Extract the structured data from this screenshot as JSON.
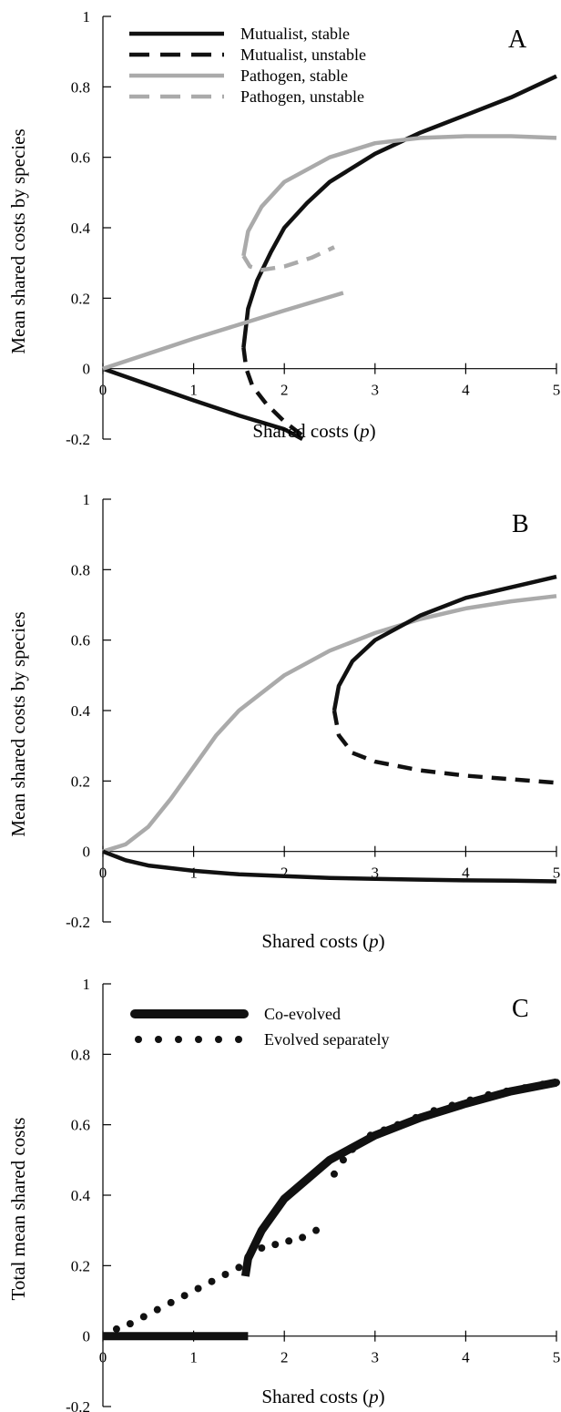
{
  "colors": {
    "mutualist": "#111111",
    "pathogen": "#aaaaaa",
    "axis": "#000000"
  },
  "chart_data": [
    {
      "panel": "A",
      "type": "line",
      "xlabel_text": "Shared costs (",
      "xlabel_var": "p",
      "xlabel_close": ")",
      "ylabel": "Mean shared costs by species",
      "xlim": [
        0,
        5
      ],
      "ylim": [
        -0.2,
        1
      ],
      "xticks": [
        "0",
        "1",
        "2",
        "3",
        "4",
        "5"
      ],
      "yticks": [
        "-0.2",
        "0",
        "0.2",
        "0.4",
        "0.6",
        "0.8",
        "1"
      ],
      "legend": [
        {
          "label": "Mutualist, stable",
          "series": "mutualist",
          "style": "solid"
        },
        {
          "label": "Mutualist, unstable",
          "series": "mutualist",
          "style": "dashed"
        },
        {
          "label": "Pathogen, stable",
          "series": "pathogen",
          "style": "solid"
        },
        {
          "label": "Pathogen, unstable",
          "series": "pathogen",
          "style": "dashed"
        }
      ],
      "series": [
        {
          "series": "mutualist",
          "style": "solid",
          "width": 4.5,
          "points": [
            [
              0,
              0
            ],
            [
              0.5,
              -0.045
            ],
            [
              1,
              -0.09
            ],
            [
              1.5,
              -0.133
            ],
            [
              2,
              -0.172
            ],
            [
              2.2,
              -0.2
            ]
          ]
        },
        {
          "series": "mutualist",
          "style": "solid",
          "width": 4.5,
          "points": [
            [
              1.55,
              0.06
            ],
            [
              1.6,
              0.17
            ],
            [
              1.7,
              0.25
            ],
            [
              1.85,
              0.33
            ],
            [
              2,
              0.4
            ],
            [
              2.25,
              0.47
            ],
            [
              2.5,
              0.53
            ],
            [
              3,
              0.61
            ],
            [
              3.5,
              0.67
            ],
            [
              4,
              0.72
            ],
            [
              4.5,
              0.77
            ],
            [
              5,
              0.83
            ]
          ]
        },
        {
          "series": "mutualist",
          "style": "dashed",
          "width": 4.5,
          "points": [
            [
              1.55,
              0.06
            ],
            [
              1.58,
              0
            ],
            [
              1.65,
              -0.05
            ],
            [
              1.8,
              -0.1
            ],
            [
              2,
              -0.15
            ],
            [
              2.25,
              -0.2
            ]
          ]
        },
        {
          "series": "pathogen",
          "style": "solid",
          "width": 4.5,
          "points": [
            [
              0,
              0
            ],
            [
              1,
              0.085
            ],
            [
              2,
              0.165
            ],
            [
              2.65,
              0.215
            ]
          ]
        },
        {
          "series": "pathogen",
          "style": "solid",
          "width": 4.5,
          "points": [
            [
              1.55,
              0.32
            ],
            [
              1.6,
              0.39
            ],
            [
              1.75,
              0.46
            ],
            [
              2,
              0.53
            ],
            [
              2.5,
              0.6
            ],
            [
              3,
              0.64
            ],
            [
              3.5,
              0.655
            ],
            [
              4,
              0.66
            ],
            [
              4.5,
              0.66
            ],
            [
              5,
              0.655
            ]
          ]
        },
        {
          "series": "pathogen",
          "style": "dashed",
          "width": 4.5,
          "points": [
            [
              1.55,
              0.32
            ],
            [
              1.62,
              0.29
            ],
            [
              1.75,
              0.28
            ],
            [
              2,
              0.29
            ],
            [
              2.3,
              0.315
            ],
            [
              2.55,
              0.345
            ]
          ]
        }
      ]
    },
    {
      "panel": "B",
      "type": "line",
      "xlabel_text": "Shared costs (",
      "xlabel_var": "p",
      "xlabel_close": ")",
      "ylabel": "Mean shared costs by species",
      "xlim": [
        0,
        5
      ],
      "ylim": [
        -0.2,
        1
      ],
      "xticks": [
        "0",
        "1",
        "2",
        "3",
        "4",
        "5"
      ],
      "yticks": [
        "-0.2",
        "0",
        "0.2",
        "0.4",
        "0.6",
        "0.8",
        "1"
      ],
      "legend": [],
      "series": [
        {
          "series": "pathogen",
          "style": "solid",
          "width": 4.5,
          "points": [
            [
              0,
              0
            ],
            [
              0.25,
              0.02
            ],
            [
              0.5,
              0.07
            ],
            [
              0.75,
              0.15
            ],
            [
              1,
              0.24
            ],
            [
              1.25,
              0.33
            ],
            [
              1.5,
              0.4
            ],
            [
              2,
              0.5
            ],
            [
              2.5,
              0.57
            ],
            [
              3,
              0.62
            ],
            [
              3.5,
              0.66
            ],
            [
              4,
              0.69
            ],
            [
              4.5,
              0.71
            ],
            [
              5,
              0.725
            ]
          ]
        },
        {
          "series": "mutualist",
          "style": "solid",
          "width": 4.5,
          "points": [
            [
              0,
              0
            ],
            [
              0.25,
              -0.025
            ],
            [
              0.5,
              -0.04
            ],
            [
              1,
              -0.055
            ],
            [
              1.5,
              -0.065
            ],
            [
              2,
              -0.07
            ],
            [
              2.5,
              -0.075
            ],
            [
              3,
              -0.078
            ],
            [
              3.5,
              -0.08
            ],
            [
              4,
              -0.082
            ],
            [
              4.5,
              -0.083
            ],
            [
              5,
              -0.085
            ]
          ]
        },
        {
          "series": "mutualist",
          "style": "solid",
          "width": 4.5,
          "points": [
            [
              2.55,
              0.4
            ],
            [
              2.6,
              0.47
            ],
            [
              2.75,
              0.54
            ],
            [
              3,
              0.6
            ],
            [
              3.5,
              0.67
            ],
            [
              4,
              0.72
            ],
            [
              4.5,
              0.75
            ],
            [
              5,
              0.78
            ]
          ]
        },
        {
          "series": "mutualist",
          "style": "dashed",
          "width": 4.5,
          "points": [
            [
              2.55,
              0.4
            ],
            [
              2.6,
              0.33
            ],
            [
              2.75,
              0.28
            ],
            [
              3,
              0.255
            ],
            [
              3.5,
              0.23
            ],
            [
              4,
              0.215
            ],
            [
              4.5,
              0.205
            ],
            [
              5,
              0.195
            ]
          ]
        }
      ]
    },
    {
      "panel": "C",
      "type": "line",
      "xlabel_text": "Shared costs (",
      "xlabel_var": "p",
      "xlabel_close": ")",
      "ylabel": "Total mean shared costs",
      "xlim": [
        0,
        5
      ],
      "ylim": [
        -0.2,
        1
      ],
      "xticks": [
        "0",
        "1",
        "2",
        "3",
        "4",
        "5"
      ],
      "yticks": [
        "-0.2",
        "0",
        "0.2",
        "0.4",
        "0.6",
        "0.8",
        "1"
      ],
      "legend": [
        {
          "label": "Co-evolved",
          "series": "mutualist",
          "style": "thick"
        },
        {
          "label": "Evolved separately",
          "series": "mutualist",
          "style": "dotted"
        }
      ],
      "series": [
        {
          "series": "mutualist",
          "style": "thick",
          "width": 9,
          "points": [
            [
              0,
              0
            ],
            [
              1.6,
              0
            ]
          ]
        },
        {
          "series": "mutualist",
          "style": "thick",
          "width": 9,
          "points": [
            [
              1.57,
              0.17
            ],
            [
              1.6,
              0.22
            ],
            [
              1.75,
              0.3
            ],
            [
              2,
              0.39
            ],
            [
              2.5,
              0.5
            ],
            [
              3,
              0.57
            ],
            [
              3.5,
              0.62
            ],
            [
              4,
              0.66
            ],
            [
              4.5,
              0.695
            ],
            [
              5,
              0.72
            ]
          ]
        },
        {
          "series": "mutualist",
          "style": "dotted",
          "width": 0,
          "points": [
            [
              0.15,
              0.02
            ],
            [
              0.3,
              0.035
            ],
            [
              0.45,
              0.055
            ],
            [
              0.6,
              0.075
            ],
            [
              0.75,
              0.095
            ],
            [
              0.9,
              0.115
            ],
            [
              1.05,
              0.135
            ],
            [
              1.2,
              0.155
            ],
            [
              1.35,
              0.175
            ],
            [
              1.5,
              0.195
            ],
            [
              1.6,
              0.225
            ],
            [
              1.75,
              0.25
            ],
            [
              1.9,
              0.26
            ],
            [
              2.05,
              0.27
            ],
            [
              2.2,
              0.28
            ],
            [
              2.35,
              0.3
            ],
            [
              2.55,
              0.46
            ],
            [
              2.65,
              0.5
            ],
            [
              2.75,
              0.53
            ],
            [
              2.85,
              0.55
            ],
            [
              2.95,
              0.57
            ],
            [
              3.1,
              0.585
            ],
            [
              3.25,
              0.6
            ],
            [
              3.45,
              0.62
            ],
            [
              3.65,
              0.64
            ],
            [
              3.85,
              0.655
            ],
            [
              4.05,
              0.67
            ],
            [
              4.25,
              0.685
            ],
            [
              4.45,
              0.695
            ],
            [
              4.65,
              0.705
            ],
            [
              4.85,
              0.715
            ],
            [
              5,
              0.72
            ]
          ]
        }
      ]
    }
  ]
}
